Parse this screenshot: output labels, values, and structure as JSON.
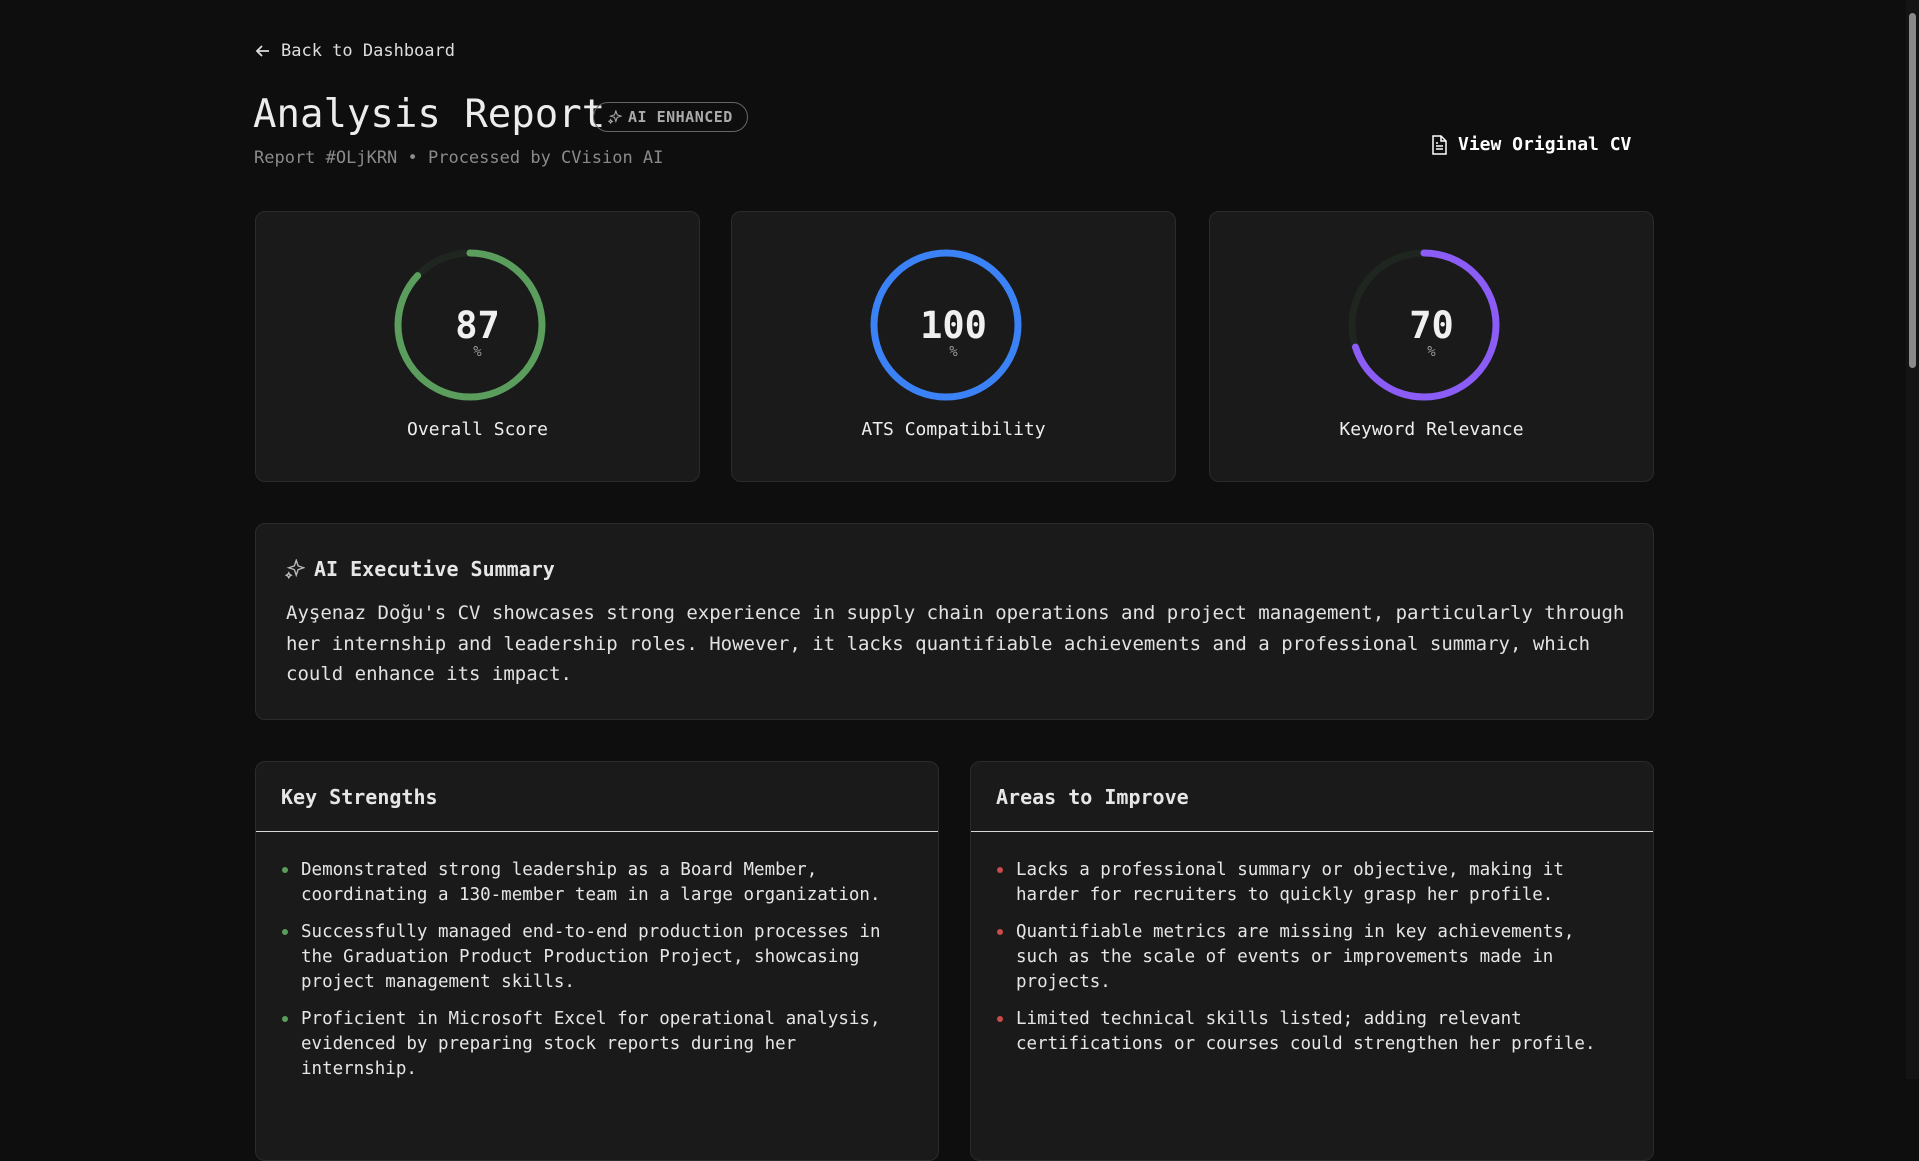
{
  "nav": {
    "back": "Back to Dashboard"
  },
  "header": {
    "title": "Analysis Report",
    "badge": "AI ENHANCED",
    "subtitle": "Report #OLjKRN • Processed by CVision AI",
    "action": "View Original CV"
  },
  "scores": [
    {
      "value": 87,
      "unit": "%",
      "label": "Overall Score",
      "color": "#5a9d5c"
    },
    {
      "value": 100,
      "unit": "%",
      "label": "ATS Compatibility",
      "color": "#3b82f6"
    },
    {
      "value": 70,
      "unit": "%",
      "label": "Keyword Relevance",
      "color": "#8b5cf6"
    }
  ],
  "summary": {
    "title": "AI Executive Summary",
    "text": "Ayşenaz Doğu's CV showcases strong experience in supply chain operations and project management, particularly through her internship and leadership roles. However, it lacks quantifiable achievements and a professional summary, which could enhance its impact."
  },
  "strengths": {
    "title": "Key Strengths",
    "items": [
      "Demonstrated strong leadership as a Board Member, coordinating a 130-member team in a large organization.",
      "Successfully managed end-to-end production processes in the Graduation Product Production Project, showcasing project management skills.",
      "Proficient in Microsoft Excel for operational analysis, evidenced by preparing stock reports during her internship."
    ]
  },
  "improvements": {
    "title": "Areas to Improve",
    "items": [
      "Lacks a professional summary or objective, making it harder for recruiters to quickly grasp her profile.",
      "Quantifiable metrics are missing in key achievements, such as the scale of events or improvements made in projects.",
      "Limited technical skills listed; adding relevant certifications or courses could strengthen her profile."
    ]
  }
}
